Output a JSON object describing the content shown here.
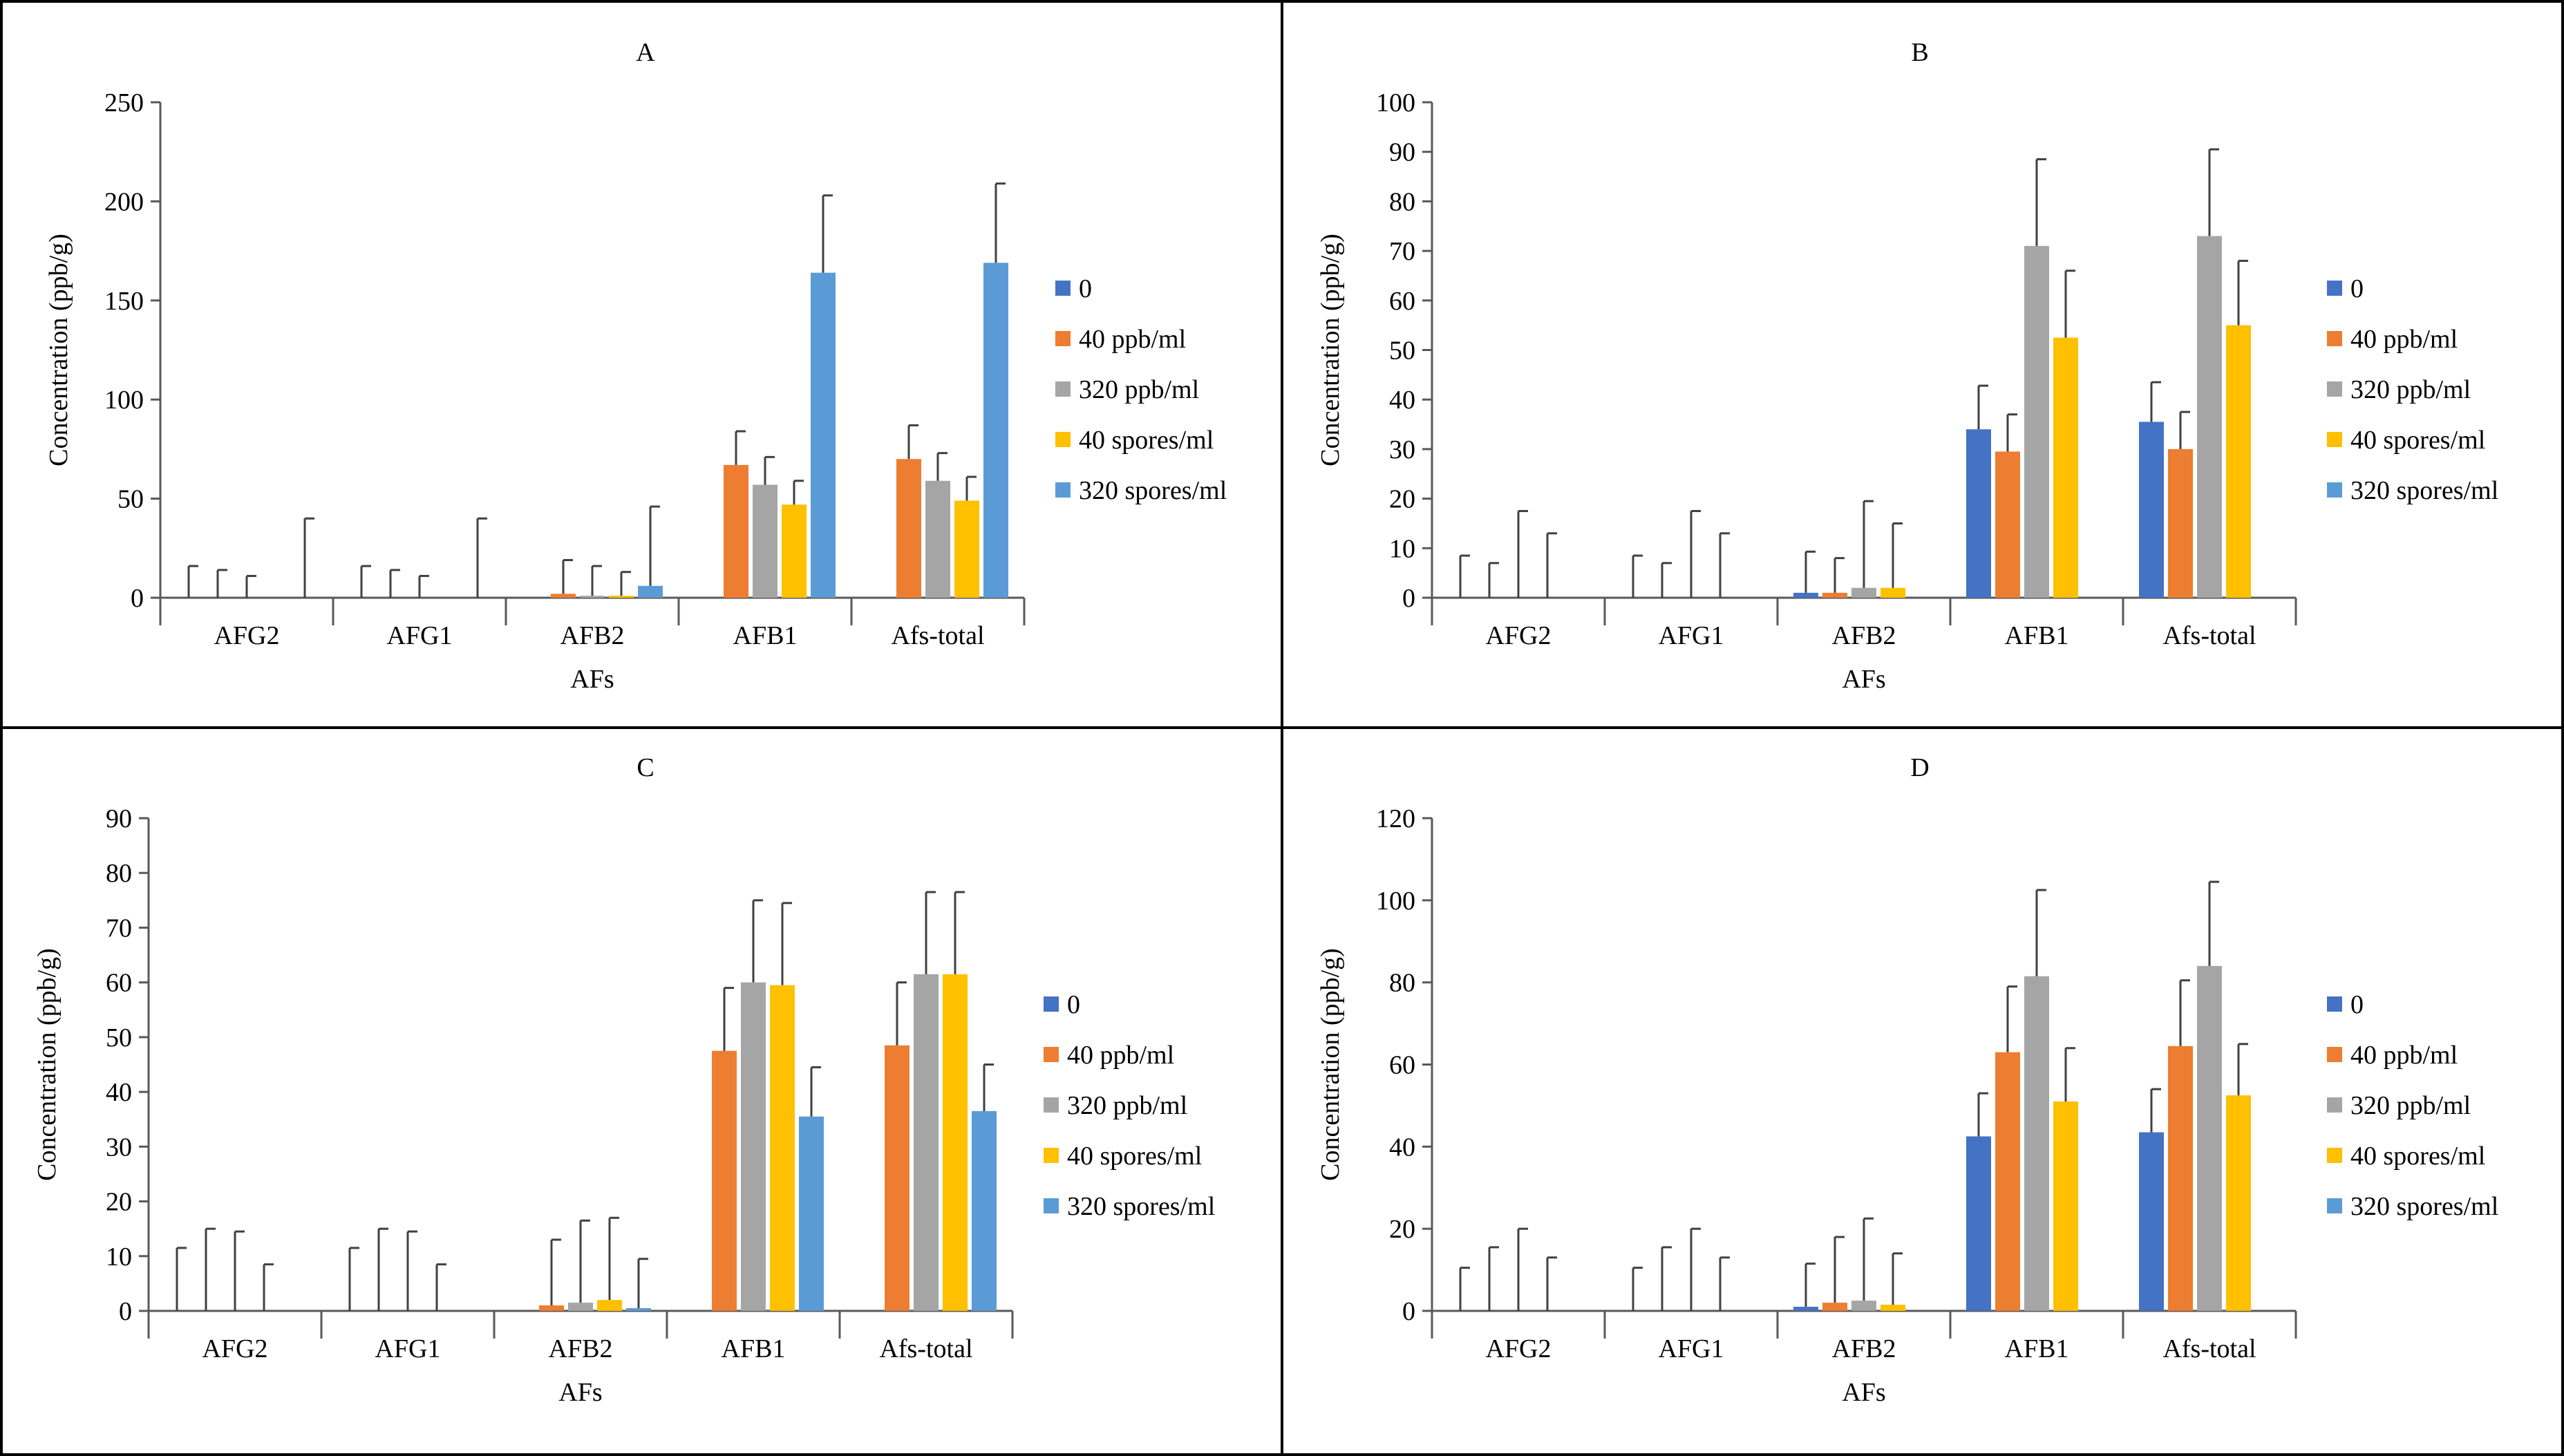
{
  "figure": {
    "legend": [
      {
        "label": "0",
        "color": "#4472C4"
      },
      {
        "label": "40 ppb/ml",
        "color": "#ED7D31"
      },
      {
        "label": "320 ppb/ml",
        "color": "#A5A5A5"
      },
      {
        "label": "40 spores/ml",
        "color": "#FFC000"
      },
      {
        "label": "320 spores/ml",
        "color": "#5B9BD5"
      }
    ],
    "axis_color": "#595959",
    "errorbar_color": "#404040"
  },
  "chart_data": [
    {
      "type": "bar",
      "title": "A",
      "xlabel": "AFs",
      "ylabel": "Concentration   (ppb/g)",
      "ylim": [
        0,
        250
      ],
      "yticks": [
        "0",
        "50",
        "100",
        "150",
        "200",
        "250"
      ],
      "categories": [
        "AFG2",
        "AFG1",
        "AFB2",
        "AFB1",
        "Afs-total"
      ],
      "series": [
        {
          "name": "0",
          "values": [
            0,
            0,
            0,
            0,
            0
          ],
          "errors": [
            16,
            16,
            0,
            0,
            0
          ]
        },
        {
          "name": "40 ppb/ml",
          "values": [
            0,
            0,
            2,
            67,
            70
          ],
          "errors": [
            14,
            14,
            17,
            17,
            17
          ]
        },
        {
          "name": "320 ppb/ml",
          "values": [
            0,
            0,
            1,
            57,
            59
          ],
          "errors": [
            11,
            11,
            15,
            14,
            14
          ]
        },
        {
          "name": "40 spores/ml",
          "values": [
            0,
            0,
            1,
            47,
            49
          ],
          "errors": [
            0,
            0,
            12,
            12,
            12
          ]
        },
        {
          "name": "320 spores/ml",
          "values": [
            0,
            0,
            6,
            164,
            169
          ],
          "errors": [
            40,
            40,
            40,
            39,
            40
          ]
        }
      ]
    },
    {
      "type": "bar",
      "title": "B",
      "xlabel": "AFs",
      "ylabel": "Concentration   (ppb/g)",
      "ylim": [
        0,
        100
      ],
      "yticks": [
        "0",
        "10",
        "20",
        "30",
        "40",
        "50",
        "60",
        "70",
        "80",
        "90",
        "100"
      ],
      "categories": [
        "AFG2",
        "AFG1",
        "AFB2",
        "AFB1",
        "Afs-total"
      ],
      "series": [
        {
          "name": "0",
          "values": [
            0,
            0,
            1,
            34,
            35.5
          ],
          "errors": [
            8.5,
            8.5,
            8.3,
            8.8,
            8
          ]
        },
        {
          "name": "40 ppb/ml",
          "values": [
            0,
            0,
            1,
            29.5,
            30
          ],
          "errors": [
            7,
            7,
            7,
            7.5,
            7.5
          ]
        },
        {
          "name": "320 ppb/ml",
          "values": [
            0,
            0,
            2,
            71,
            73
          ],
          "errors": [
            17.5,
            17.5,
            17.5,
            17.5,
            17.5
          ]
        },
        {
          "name": "40 spores/ml",
          "values": [
            0,
            0,
            2,
            52.5,
            55
          ],
          "errors": [
            13,
            13,
            13,
            13.5,
            13
          ]
        },
        {
          "name": "320 spores/ml",
          "values": [
            0,
            0,
            0,
            0,
            0
          ],
          "errors": [
            0,
            0,
            0,
            0,
            0
          ]
        }
      ]
    },
    {
      "type": "bar",
      "title": "C",
      "xlabel": "AFs",
      "ylabel": "Concentration   (ppb/g)",
      "ylim": [
        0,
        90
      ],
      "yticks": [
        "0",
        "10",
        "20",
        "30",
        "40",
        "50",
        "60",
        "70",
        "80",
        "90"
      ],
      "categories": [
        "AFG2",
        "AFG1",
        "AFB2",
        "AFB1",
        "Afs-total"
      ],
      "series": [
        {
          "name": "0",
          "values": [
            0,
            0,
            0,
            0,
            0
          ],
          "errors": [
            11.5,
            11.5,
            0,
            0,
            0
          ]
        },
        {
          "name": "40 ppb/ml",
          "values": [
            0,
            0,
            1,
            47.5,
            48.5
          ],
          "errors": [
            15,
            15,
            12,
            11.5,
            11.5
          ]
        },
        {
          "name": "320 ppb/ml",
          "values": [
            0,
            0,
            1.5,
            60,
            61.5
          ],
          "errors": [
            14.5,
            14.5,
            15,
            15,
            15
          ]
        },
        {
          "name": "40 spores/ml",
          "values": [
            0,
            0,
            2,
            59.5,
            61.5
          ],
          "errors": [
            8.5,
            8.5,
            15,
            15,
            15
          ]
        },
        {
          "name": "320 spores/ml",
          "values": [
            0,
            0,
            0.5,
            35.5,
            36.5
          ],
          "errors": [
            0,
            0,
            9,
            9,
            8.5
          ]
        }
      ]
    },
    {
      "type": "bar",
      "title": "D",
      "xlabel": "AFs",
      "ylabel": "Concentration   (ppb/g)",
      "ylim": [
        0,
        120
      ],
      "yticks": [
        "0",
        "20",
        "40",
        "60",
        "80",
        "100",
        "120"
      ],
      "categories": [
        "AFG2",
        "AFG1",
        "AFB2",
        "AFB1",
        "Afs-total"
      ],
      "series": [
        {
          "name": "0",
          "values": [
            0,
            0,
            1,
            42.5,
            43.5
          ],
          "errors": [
            10.5,
            10.5,
            10.5,
            10.5,
            10.5
          ]
        },
        {
          "name": "40 ppb/ml",
          "values": [
            0,
            0,
            2,
            63,
            64.5
          ],
          "errors": [
            15.5,
            15.5,
            16,
            16,
            16
          ]
        },
        {
          "name": "320 ppb/ml",
          "values": [
            0,
            0,
            2.5,
            81.5,
            84
          ],
          "errors": [
            20,
            20,
            20,
            21,
            20.5
          ]
        },
        {
          "name": "40 spores/ml",
          "values": [
            0,
            0,
            1.5,
            51,
            52.5
          ],
          "errors": [
            13,
            13,
            12.5,
            13,
            12.5
          ]
        },
        {
          "name": "320 spores/ml",
          "values": [
            0,
            0,
            0,
            0,
            0
          ],
          "errors": [
            0,
            0,
            0,
            0,
            0
          ]
        }
      ]
    }
  ]
}
